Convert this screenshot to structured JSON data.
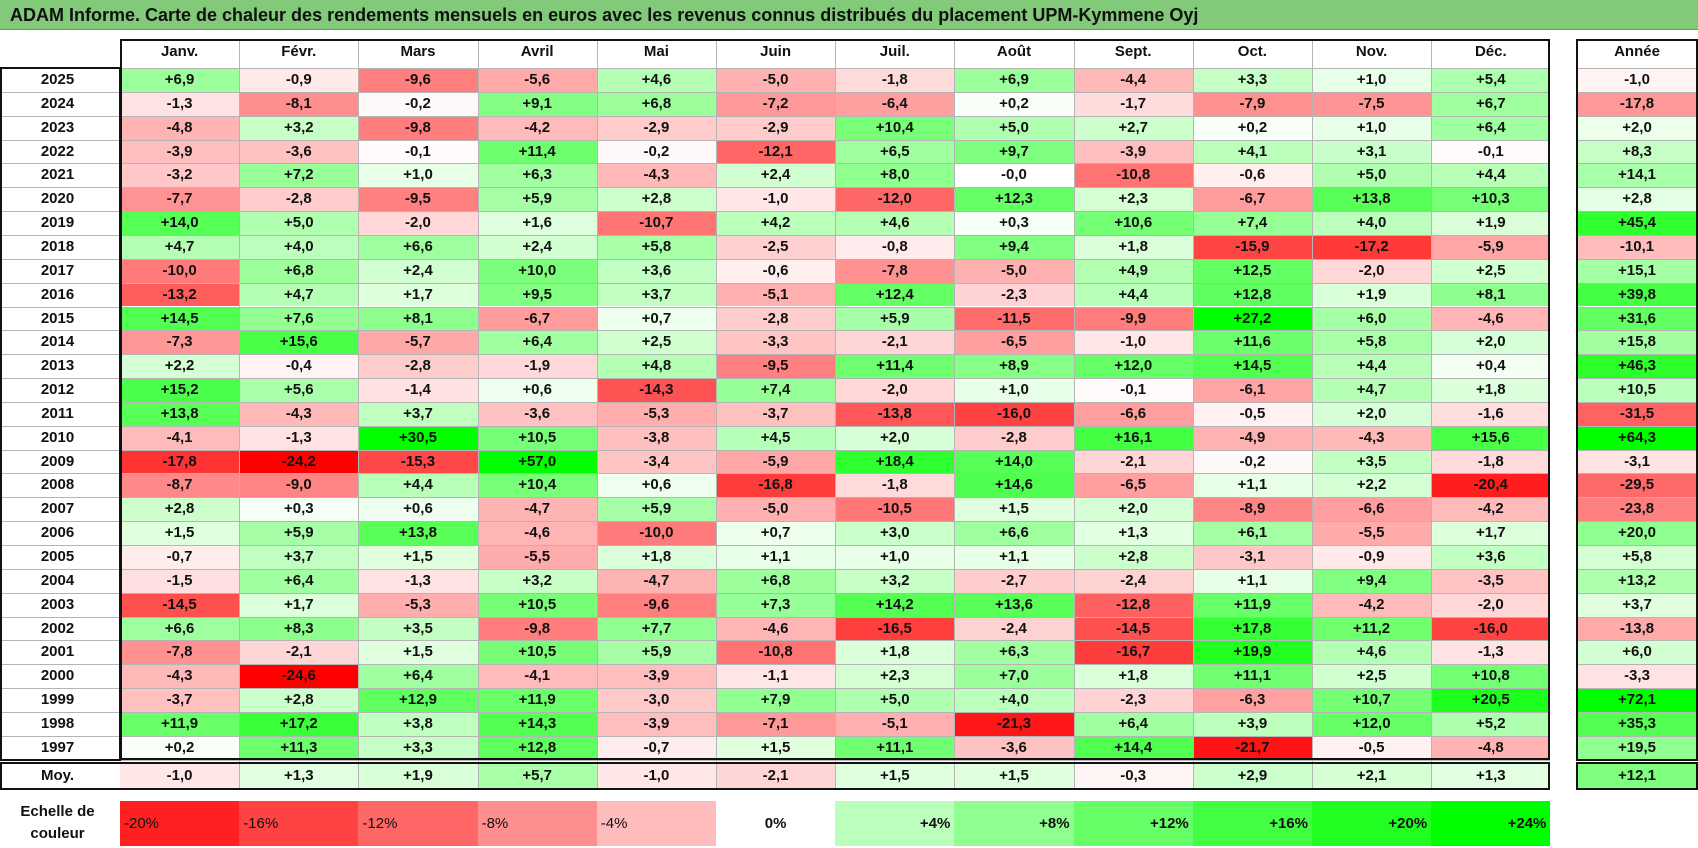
{
  "chart_data": {
    "type": "heatmap",
    "title": "ADAM Informe. Carte de chaleur des rendements mensuels en euros avec les revenus connus distribués du placement UPM-Kymmene Oyj",
    "columns": [
      "Janv.",
      "Févr.",
      "Mars",
      "Avril",
      "Mai",
      "Juin",
      "Juil.",
      "Août",
      "Sept.",
      "Oct.",
      "Nov.",
      "Déc."
    ],
    "annual_column": "Année",
    "average_row_label": "Moy.",
    "rows": [
      {
        "year": "2025",
        "values": [
          "+6,9",
          "-0,9",
          "-9,6",
          "-5,6",
          "+4,6",
          "-5,0",
          "-1,8",
          "+6,9",
          "-4,4",
          "+3,3",
          "+1,0",
          "+5,4"
        ],
        "annual": "-1,0"
      },
      {
        "year": "2024",
        "values": [
          "-1,3",
          "-8,1",
          "-0,2",
          "+9,1",
          "+6,8",
          "-7,2",
          "-6,4",
          "+0,2",
          "-1,7",
          "-7,9",
          "-7,5",
          "+6,7"
        ],
        "annual": "-17,8"
      },
      {
        "year": "2023",
        "values": [
          "-4,8",
          "+3,2",
          "-9,8",
          "-4,2",
          "-2,9",
          "-2,9",
          "+10,4",
          "+5,0",
          "+2,7",
          "+0,2",
          "+1,0",
          "+6,4"
        ],
        "annual": "+2,0"
      },
      {
        "year": "2022",
        "values": [
          "-3,9",
          "-3,6",
          "-0,1",
          "+11,4",
          "-0,2",
          "-12,1",
          "+6,5",
          "+9,7",
          "-3,9",
          "+4,1",
          "+3,1",
          "-0,1"
        ],
        "annual": "+8,3"
      },
      {
        "year": "2021",
        "values": [
          "-3,2",
          "+7,2",
          "+1,0",
          "+6,3",
          "-4,3",
          "+2,4",
          "+8,0",
          "-0,0",
          "-10,8",
          "-0,6",
          "+5,0",
          "+4,4"
        ],
        "annual": "+14,1"
      },
      {
        "year": "2020",
        "values": [
          "-7,7",
          "-2,8",
          "-9,5",
          "+5,9",
          "+2,8",
          "-1,0",
          "-12,0",
          "+12,3",
          "+2,3",
          "-6,7",
          "+13,8",
          "+10,3"
        ],
        "annual": "+2,8"
      },
      {
        "year": "2019",
        "values": [
          "+14,0",
          "+5,0",
          "-2,0",
          "+1,6",
          "-10,7",
          "+4,2",
          "+4,6",
          "+0,3",
          "+10,6",
          "+7,4",
          "+4,0",
          "+1,9"
        ],
        "annual": "+45,4"
      },
      {
        "year": "2018",
        "values": [
          "+4,7",
          "+4,0",
          "+6,6",
          "+2,4",
          "+5,8",
          "-2,5",
          "-0,8",
          "+9,4",
          "+1,8",
          "-15,9",
          "-17,2",
          "-5,9"
        ],
        "annual": "-10,1"
      },
      {
        "year": "2017",
        "values": [
          "-10,0",
          "+6,8",
          "+2,4",
          "+10,0",
          "+3,6",
          "-0,6",
          "-7,8",
          "-5,0",
          "+4,9",
          "+12,5",
          "-2,0",
          "+2,5"
        ],
        "annual": "+15,1"
      },
      {
        "year": "2016",
        "values": [
          "-13,2",
          "+4,7",
          "+1,7",
          "+9,5",
          "+3,7",
          "-5,1",
          "+12,4",
          "-2,3",
          "+4,4",
          "+12,8",
          "+1,9",
          "+8,1"
        ],
        "annual": "+39,8"
      },
      {
        "year": "2015",
        "values": [
          "+14,5",
          "+7,6",
          "+8,1",
          "-6,7",
          "+0,7",
          "-2,8",
          "+5,9",
          "-11,5",
          "-9,9",
          "+27,2",
          "+6,0",
          "-4,6"
        ],
        "annual": "+31,6"
      },
      {
        "year": "2014",
        "values": [
          "-7,3",
          "+15,6",
          "-5,7",
          "+6,4",
          "+2,5",
          "-3,3",
          "-2,1",
          "-6,5",
          "-1,0",
          "+11,6",
          "+5,8",
          "+2,0"
        ],
        "annual": "+15,8"
      },
      {
        "year": "2013",
        "values": [
          "+2,2",
          "-0,4",
          "-2,8",
          "-1,9",
          "+4,8",
          "-9,5",
          "+11,4",
          "+8,9",
          "+12,0",
          "+14,5",
          "+4,4",
          "+0,4"
        ],
        "annual": "+46,3"
      },
      {
        "year": "2012",
        "values": [
          "+15,2",
          "+5,6",
          "-1,4",
          "+0,6",
          "-14,3",
          "+7,4",
          "-2,0",
          "+1,0",
          "-0,1",
          "-6,1",
          "+4,7",
          "+1,8"
        ],
        "annual": "+10,5"
      },
      {
        "year": "2011",
        "values": [
          "+13,8",
          "-4,3",
          "+3,7",
          "-3,6",
          "-5,3",
          "-3,7",
          "-13,8",
          "-16,0",
          "-6,6",
          "-0,5",
          "+2,0",
          "-1,6"
        ],
        "annual": "-31,5"
      },
      {
        "year": "2010",
        "values": [
          "-4,1",
          "-1,3",
          "+30,5",
          "+10,5",
          "-3,8",
          "+4,5",
          "+2,0",
          "-2,8",
          "+16,1",
          "-4,9",
          "-4,3",
          "+15,6"
        ],
        "annual": "+64,3"
      },
      {
        "year": "2009",
        "values": [
          "-17,8",
          "-24,2",
          "-15,3",
          "+57,0",
          "-3,4",
          "-5,9",
          "+18,4",
          "+14,0",
          "-2,1",
          "-0,2",
          "+3,5",
          "-1,8"
        ],
        "annual": "-3,1"
      },
      {
        "year": "2008",
        "values": [
          "-8,7",
          "-9,0",
          "+4,4",
          "+10,4",
          "+0,6",
          "-16,8",
          "-1,8",
          "+14,6",
          "-6,5",
          "+1,1",
          "+2,2",
          "-20,4"
        ],
        "annual": "-29,5"
      },
      {
        "year": "2007",
        "values": [
          "+2,8",
          "+0,3",
          "+0,6",
          "-4,7",
          "+5,9",
          "-5,0",
          "-10,5",
          "+1,5",
          "+2,0",
          "-8,9",
          "-6,6",
          "-4,2"
        ],
        "annual": "-23,8"
      },
      {
        "year": "2006",
        "values": [
          "+1,5",
          "+5,9",
          "+13,8",
          "-4,6",
          "-10,0",
          "+0,7",
          "+3,0",
          "+6,6",
          "+1,3",
          "+6,1",
          "-5,5",
          "+1,7"
        ],
        "annual": "+20,0"
      },
      {
        "year": "2005",
        "values": [
          "-0,7",
          "+3,7",
          "+1,5",
          "-5,5",
          "+1,8",
          "+1,1",
          "+1,0",
          "+1,1",
          "+2,8",
          "-3,1",
          "-0,9",
          "+3,6"
        ],
        "annual": "+5,8"
      },
      {
        "year": "2004",
        "values": [
          "-1,5",
          "+6,4",
          "-1,3",
          "+3,2",
          "-4,7",
          "+6,8",
          "+3,2",
          "-2,7",
          "-2,4",
          "+1,1",
          "+9,4",
          "-3,5"
        ],
        "annual": "+13,2"
      },
      {
        "year": "2003",
        "values": [
          "-14,5",
          "+1,7",
          "-5,3",
          "+10,5",
          "-9,6",
          "+7,3",
          "+14,2",
          "+13,6",
          "-12,8",
          "+11,9",
          "-4,2",
          "-2,0"
        ],
        "annual": "+3,7"
      },
      {
        "year": "2002",
        "values": [
          "+6,6",
          "+8,3",
          "+3,5",
          "-9,8",
          "+7,7",
          "-4,6",
          "-16,5",
          "-2,4",
          "-14,5",
          "+17,8",
          "+11,2",
          "-16,0"
        ],
        "annual": "-13,8"
      },
      {
        "year": "2001",
        "values": [
          "-7,8",
          "-2,1",
          "+1,5",
          "+10,5",
          "+5,9",
          "-10,8",
          "+1,8",
          "+6,3",
          "-16,7",
          "+19,9",
          "+4,6",
          "-1,3"
        ],
        "annual": "+6,0"
      },
      {
        "year": "2000",
        "values": [
          "-4,3",
          "-24,6",
          "+6,4",
          "-4,1",
          "-3,9",
          "-1,1",
          "+2,3",
          "+7,0",
          "+1,8",
          "+11,1",
          "+2,5",
          "+10,8"
        ],
        "annual": "-3,3"
      },
      {
        "year": "1999",
        "values": [
          "-3,7",
          "+2,8",
          "+12,9",
          "+11,9",
          "-3,0",
          "+7,9",
          "+5,0",
          "+4,0",
          "-2,3",
          "-6,3",
          "+10,7",
          "+20,5"
        ],
        "annual": "+72,1"
      },
      {
        "year": "1998",
        "values": [
          "+11,9",
          "+17,2",
          "+3,8",
          "+14,3",
          "-3,9",
          "-7,1",
          "-5,1",
          "-21,3",
          "+6,4",
          "+3,9",
          "+12,0",
          "+5,2"
        ],
        "annual": "+35,3"
      },
      {
        "year": "1997",
        "values": [
          "+0,2",
          "+11,3",
          "+3,3",
          "+12,8",
          "-0,7",
          "+1,5",
          "+11,1",
          "-3,6",
          "+14,4",
          "-21,7",
          "-0,5",
          "-4,8"
        ],
        "annual": "+19,5"
      }
    ],
    "average": {
      "values": [
        "-1,0",
        "+1,3",
        "+1,9",
        "+5,7",
        "-1,0",
        "-2,1",
        "+1,5",
        "+1,5",
        "-0,3",
        "+2,9",
        "+2,1",
        "+1,3"
      ],
      "annual": "+12,1"
    },
    "scale": {
      "label": "Echelle de couleur",
      "steps": [
        "-20%",
        "-16%",
        "-12%",
        "-8%",
        "-4%",
        "0%",
        "+4%",
        "+8%",
        "+12%",
        "+16%",
        "+20%",
        "+24%"
      ]
    },
    "colors": {
      "negative_max": "#ff0000",
      "neutral": "#ffffff",
      "positive_max": "#00ff00",
      "title_bar": "#82c97a"
    }
  }
}
